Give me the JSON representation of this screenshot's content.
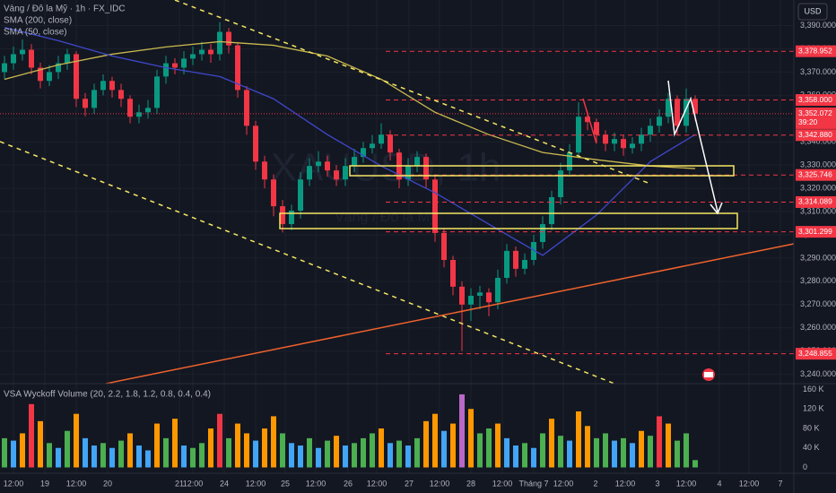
{
  "chart_data": [
    {
      "type": "candlestick",
      "title": "Vàng / Đô la Mỹ · 1h · FX_IDC",
      "watermark": "XAUUSD, 1h",
      "watermark_subtitle": "Vàng / Đô la Mỹ",
      "currency": "USD",
      "up_color": "#089981",
      "down_color": "#f23645",
      "open": [
        3370.0,
        3373.8,
        3377.7,
        3379.6,
        3371.9,
        3366.2,
        3370.0,
        3373.8,
        3377.7,
        3358.5,
        3354.6,
        3362.3,
        3366.2,
        3362.3,
        3358.5,
        3350.8,
        3352.7,
        3354.6,
        3368.1,
        3373.8,
        3371.9,
        3375.8,
        3377.7,
        3379.6,
        3377.7,
        3387.3,
        3381.5,
        3362.3,
        3346.9,
        3331.5,
        3323.8,
        3312.3,
        3304.6,
        3310.4,
        3323.8,
        3329.6,
        3331.5,
        3327.7,
        3323.8,
        3329.6,
        3333.5,
        3337.3,
        3339.2,
        3343.1,
        3335.4,
        3323.8,
        3329.6,
        3333.5,
        3323.8,
        3300.8,
        3289.2,
        3277.7,
        3270.0,
        3273.8,
        3275.2,
        3271.0,
        3281.5,
        3293.1,
        3285.4,
        3289.2,
        3296.9,
        3304.6,
        3316.2,
        3327.7,
        3335.4,
        3350.8,
        3348.5,
        3343.1,
        3339.2,
        3341.2,
        3337.3,
        3339.2,
        3343.1,
        3346.9,
        3350.8,
        3358.5,
        3346.9,
        3358.5
      ],
      "high": [
        3377.0,
        3381.0,
        3384.0,
        3382.0,
        3374.0,
        3373.0,
        3377.0,
        3380.0,
        3379.0,
        3361.0,
        3365.0,
        3369.0,
        3368.0,
        3365.0,
        3360.0,
        3356.0,
        3358.0,
        3371.0,
        3377.0,
        3376.0,
        3379.0,
        3381.0,
        3383.0,
        3382.0,
        3391.5,
        3389.0,
        3383.0,
        3364.0,
        3349.0,
        3334.0,
        3326.0,
        3315.0,
        3313.0,
        3327.0,
        3333.0,
        3336.0,
        3334.0,
        3330.0,
        3333.0,
        3337.0,
        3340.0,
        3343.0,
        3348.0,
        3345.0,
        3337.0,
        3333.0,
        3336.0,
        3335.0,
        3326.0,
        3303.0,
        3291.0,
        3280.0,
        3277.0,
        3278.0,
        3277.0,
        3285.0,
        3296.0,
        3295.0,
        3292.0,
        3300.0,
        3308.0,
        3319.0,
        3331.0,
        3339.0,
        3357.0,
        3353.0,
        3350.0,
        3345.0,
        3344.0,
        3343.0,
        3342.0,
        3346.0,
        3350.0,
        3354.0,
        3361.0,
        3360.0,
        3363.0,
        3360.0
      ],
      "low": [
        3367.0,
        3371.0,
        3375.0,
        3369.0,
        3363.0,
        3364.0,
        3367.0,
        3371.0,
        3355.0,
        3351.0,
        3352.0,
        3360.0,
        3359.0,
        3355.0,
        3348.0,
        3348.0,
        3350.0,
        3352.0,
        3365.0,
        3369.0,
        3369.0,
        3373.0,
        3375.0,
        3374.0,
        3375.0,
        3378.0,
        3359.0,
        3343.0,
        3328.0,
        3320.0,
        3308.0,
        3301.0,
        3302.0,
        3307.0,
        3321.0,
        3327.0,
        3325.0,
        3321.0,
        3321.0,
        3327.0,
        3331.0,
        3335.0,
        3337.0,
        3332.0,
        3320.0,
        3321.0,
        3327.0,
        3320.0,
        3297.0,
        3286.0,
        3274.0,
        3250.0,
        3263.0,
        3268.0,
        3265.0,
        3268.0,
        3279.0,
        3282.0,
        3283.0,
        3287.0,
        3294.0,
        3302.0,
        3313.0,
        3325.0,
        3333.0,
        3345.0,
        3340.0,
        3336.0,
        3336.0,
        3334.0,
        3335.0,
        3336.0,
        3340.0,
        3344.0,
        3348.0,
        3343.0,
        3344.0,
        3349.0
      ],
      "close": [
        3373.8,
        3377.7,
        3379.6,
        3371.9,
        3366.2,
        3370.0,
        3373.8,
        3377.7,
        3358.5,
        3354.6,
        3362.3,
        3366.2,
        3362.3,
        3358.5,
        3350.8,
        3352.7,
        3354.6,
        3368.1,
        3373.8,
        3371.9,
        3375.8,
        3377.7,
        3379.6,
        3377.7,
        3387.3,
        3381.5,
        3362.3,
        3346.9,
        3331.5,
        3323.8,
        3312.3,
        3304.6,
        3310.4,
        3323.8,
        3329.6,
        3331.5,
        3327.7,
        3323.8,
        3329.6,
        3333.5,
        3337.3,
        3339.2,
        3343.1,
        3335.4,
        3323.8,
        3329.6,
        3333.5,
        3323.8,
        3300.8,
        3289.2,
        3277.7,
        3270.0,
        3273.8,
        3275.2,
        3271.0,
        3281.5,
        3293.1,
        3285.4,
        3289.2,
        3296.9,
        3304.6,
        3316.2,
        3327.7,
        3335.4,
        3350.8,
        3348.5,
        3343.1,
        3339.2,
        3341.2,
        3337.3,
        3339.2,
        3343.1,
        3346.9,
        3350.8,
        3358.5,
        3346.9,
        3358.5,
        3352.1
      ],
      "series": [
        {
          "name": "SMA (200, close)",
          "color": "#c9b94f",
          "x": [
            0,
            6,
            12,
            18,
            24,
            30,
            36,
            42,
            48,
            54,
            60,
            66,
            72,
            77
          ],
          "values": [
            3366.9,
            3373.1,
            3377.7,
            3380.8,
            3383.1,
            3381.5,
            3376.9,
            3366.9,
            3352.7,
            3343.1,
            3335.4,
            3332.3,
            3329.6,
            3328.5
          ]
        },
        {
          "name": "SMA (50, close)",
          "color": "#3f48cc",
          "x": [
            0,
            6,
            12,
            18,
            24,
            30,
            36,
            42,
            48,
            54,
            60,
            66,
            72,
            77
          ],
          "values": [
            3389.2,
            3383.5,
            3376.9,
            3371.9,
            3368.1,
            3358.5,
            3343.1,
            3329.6,
            3318.1,
            3304.6,
            3291.2,
            3308.5,
            3331.5,
            3343.1
          ]
        }
      ],
      "levels": [
        {
          "value": 3378.952,
          "label": "3,378.952"
        },
        {
          "value": 3358.0,
          "label": "3,358.000"
        },
        {
          "value": 3342.88,
          "label": "3,342.880"
        },
        {
          "value": 3325.746,
          "label": "3,325.746"
        },
        {
          "value": 3314.089,
          "label": "3,314.089"
        },
        {
          "value": 3301.299,
          "label": "3,301.299"
        },
        {
          "value": 3248.855,
          "label": "3,248.855"
        }
      ],
      "level_color": "#f23645",
      "last_price": {
        "value": 3352.072,
        "label": "3,352.072",
        "countdown": "39:20"
      },
      "xlim": [
        -0.5,
        88
      ],
      "xticks": [
        {
          "value": 1,
          "label": "12:00"
        },
        {
          "value": 4.5,
          "label": "19"
        },
        {
          "value": 8,
          "label": "12:00"
        },
        {
          "value": 11.5,
          "label": "20"
        },
        {
          "value": 19.5,
          "label": "21"
        },
        {
          "value": 21,
          "label": "12:00"
        },
        {
          "value": 24.5,
          "label": "24"
        },
        {
          "value": 28,
          "label": "12:00"
        },
        {
          "value": 31.3,
          "label": "25"
        },
        {
          "value": 34.7,
          "label": "12:00"
        },
        {
          "value": 38.3,
          "label": "26"
        },
        {
          "value": 41.5,
          "label": "12:00"
        },
        {
          "value": 45.1,
          "label": "27"
        },
        {
          "value": 48.5,
          "label": "12:00"
        },
        {
          "value": 52,
          "label": "28"
        },
        {
          "value": 55.5,
          "label": "12:00"
        },
        {
          "value": 59,
          "label": "Tháng 7"
        },
        {
          "value": 62.3,
          "label": "12:00"
        },
        {
          "value": 65.9,
          "label": "2"
        },
        {
          "value": 69.2,
          "label": "12:00"
        },
        {
          "value": 72.8,
          "label": "3"
        },
        {
          "value": 76,
          "label": "12:00"
        },
        {
          "value": 79.7,
          "label": "4"
        },
        {
          "value": 83,
          "label": "12:00"
        },
        {
          "value": 86.5,
          "label": "7"
        }
      ],
      "ylim": [
        3236,
        3401
      ],
      "yticks": [
        {
          "value": 3390,
          "label": "3,390.000"
        },
        {
          "value": 3380,
          "label": "3,380.000"
        },
        {
          "value": 3370,
          "label": "3,370.000"
        },
        {
          "value": 3360,
          "label": "3,360.000"
        },
        {
          "value": 3350,
          "label": "3,350.000"
        },
        {
          "value": 3340,
          "label": "3,340.000"
        },
        {
          "value": 3330,
          "label": "3,330.000"
        },
        {
          "value": 3320,
          "label": "3,320.000"
        },
        {
          "value": 3310,
          "label": "3,310.000"
        },
        {
          "value": 3300,
          "label": "3,300.000"
        },
        {
          "value": 3290,
          "label": "3,290.000"
        },
        {
          "value": 3280,
          "label": "3,280.000"
        },
        {
          "value": 3270,
          "label": "3,270.000"
        },
        {
          "value": 3260,
          "label": "3,260.000"
        },
        {
          "value": 3250,
          "label": "3,250.000"
        },
        {
          "value": 3240,
          "label": "3,240.000"
        }
      ],
      "grid": true
    },
    {
      "type": "bar",
      "title": "VSA Wyckoff Volume (20, 2.2, 1.8, 1.2, 0.8, 0.4, 0.4)",
      "values": [
        60000,
        55000,
        70000,
        130000,
        95000,
        50000,
        40000,
        75000,
        110000,
        60000,
        45000,
        50000,
        40000,
        55000,
        70000,
        45000,
        35000,
        90000,
        60000,
        100000,
        45000,
        40000,
        50000,
        80000,
        110000,
        60000,
        90000,
        70000,
        55000,
        80000,
        105000,
        70000,
        50000,
        45000,
        60000,
        40000,
        55000,
        65000,
        45000,
        50000,
        60000,
        70000,
        80000,
        50000,
        55000,
        45000,
        60000,
        95000,
        110000,
        75000,
        90000,
        150000,
        120000,
        70000,
        80000,
        90000,
        60000,
        45000,
        50000,
        40000,
        70000,
        100000,
        65000,
        55000,
        115000,
        85000,
        60000,
        70000,
        55000,
        60000,
        50000,
        75000,
        65000,
        105000,
        90000,
        55000,
        70000,
        15000
      ],
      "colors": [
        "#4caf50",
        "#42a5f5",
        "#ff9800",
        "#f23645",
        "#ff9800",
        "#4caf50",
        "#42a5f5",
        "#4caf50",
        "#ff9800",
        "#42a5f5",
        "#42a5f5",
        "#4caf50",
        "#42a5f5",
        "#4caf50",
        "#ff9800",
        "#42a5f5",
        "#42a5f5",
        "#ff9800",
        "#4caf50",
        "#ff9800",
        "#42a5f5",
        "#4caf50",
        "#4caf50",
        "#ff9800",
        "#f23645",
        "#4caf50",
        "#ff9800",
        "#ff9800",
        "#42a5f5",
        "#ff9800",
        "#ff9800",
        "#4caf50",
        "#42a5f5",
        "#42a5f5",
        "#4caf50",
        "#42a5f5",
        "#4caf50",
        "#ff9800",
        "#42a5f5",
        "#4caf50",
        "#4caf50",
        "#4caf50",
        "#ff9800",
        "#42a5f5",
        "#4caf50",
        "#42a5f5",
        "#4caf50",
        "#ff9800",
        "#ff9800",
        "#42a5f5",
        "#ff9800",
        "#ba68c8",
        "#ff9800",
        "#4caf50",
        "#4caf50",
        "#ff9800",
        "#42a5f5",
        "#42a5f5",
        "#4caf50",
        "#42a5f5",
        "#4caf50",
        "#ff9800",
        "#4caf50",
        "#42a5f5",
        "#ff9800",
        "#ff9800",
        "#4caf50",
        "#4caf50",
        "#42a5f5",
        "#4caf50",
        "#42a5f5",
        "#ff9800",
        "#4caf50",
        "#f23645",
        "#ff9800",
        "#4caf50",
        "#4caf50",
        "#4caf50"
      ],
      "ylim": [
        -12000,
        172000
      ],
      "yticks": [
        {
          "value": 160000,
          "label": "160 K"
        },
        {
          "value": 120000,
          "label": "120 K"
        },
        {
          "value": 80000,
          "label": "80 K"
        },
        {
          "value": 40000,
          "label": "40 K"
        },
        0
      ]
    }
  ]
}
